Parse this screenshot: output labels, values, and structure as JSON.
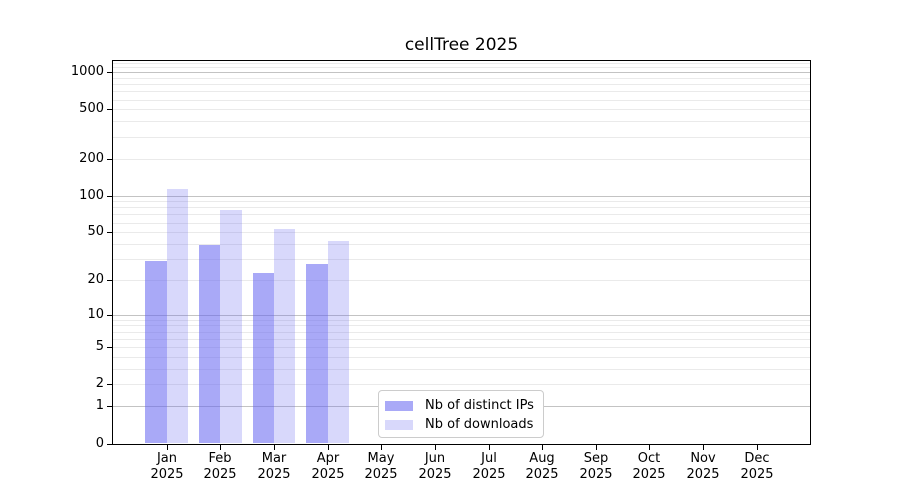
{
  "title": "cellTree 2025",
  "chart_data": {
    "type": "bar",
    "title": "cellTree 2025",
    "categories": [
      "Jan 2025",
      "Feb 2025",
      "Mar 2025",
      "Apr 2025",
      "May 2025",
      "Jun 2025",
      "Jul 2025",
      "Aug 2025",
      "Sep 2025",
      "Oct 2025",
      "Nov 2025",
      "Dec 2025"
    ],
    "months": [
      "Jan",
      "Feb",
      "Mar",
      "Apr",
      "May",
      "Jun",
      "Jul",
      "Aug",
      "Sep",
      "Oct",
      "Nov",
      "Dec"
    ],
    "year": "2025",
    "series": [
      {
        "name": "Nb of distinct IPs",
        "values": [
          29,
          39,
          23,
          27,
          0,
          0,
          0,
          0,
          0,
          0,
          0,
          0
        ]
      },
      {
        "name": "Nb of downloads",
        "values": [
          114,
          76,
          53,
          42,
          0,
          0,
          0,
          0,
          0,
          0,
          0,
          0
        ]
      }
    ],
    "yscale": "log1p",
    "ylim": [
      0,
      1240
    ],
    "yticks": [
      0,
      1,
      2,
      5,
      10,
      20,
      50,
      100,
      200,
      500,
      1000
    ],
    "grid": true,
    "grid_major_values": [
      1,
      10,
      100,
      1000
    ],
    "grid_minor_values": [
      2,
      3,
      4,
      5,
      6,
      7,
      8,
      9,
      20,
      30,
      40,
      50,
      60,
      70,
      80,
      90,
      200,
      300,
      400,
      500,
      600,
      700,
      800,
      900,
      1100,
      1200
    ],
    "legend_position": "lower center inside"
  },
  "colors": {
    "bar_distinct_ips": "rgba(98,98,240,0.55)",
    "bar_downloads": "rgba(98,98,240,0.25)",
    "grid_major": "#c3c3c3",
    "grid_minor": "#eaeaea",
    "axis": "#000000",
    "text": "#000000",
    "legend_border": "#cccccc",
    "background": "#ffffff"
  }
}
